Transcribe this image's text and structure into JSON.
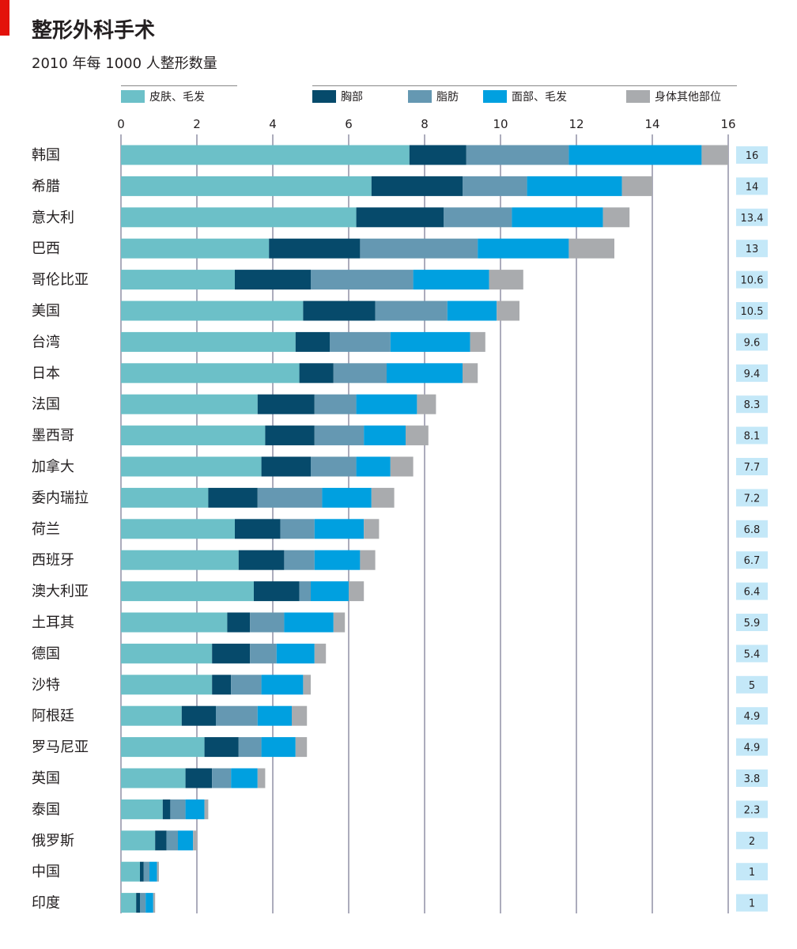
{
  "title": "整形外科手术",
  "subtitle": "2010 年每 1000 人整形数量",
  "chart_data": {
    "type": "bar",
    "orientation": "horizontal",
    "stacked": true,
    "xlim": [
      0,
      16
    ],
    "xticks": [
      0,
      2,
      4,
      6,
      8,
      10,
      12,
      14,
      16
    ],
    "grid": true,
    "legend_placement": "top",
    "categories": [
      "韩国",
      "希腊",
      "意大利",
      "巴西",
      "哥伦比亚",
      "美国",
      "台湾",
      "日本",
      "法国",
      "墨西哥",
      "加拿大",
      "委内瑞拉",
      "荷兰",
      "西班牙",
      "澳大利亚",
      "土耳其",
      "德国",
      "沙特",
      "阿根廷",
      "罗马尼亚",
      "英国",
      "泰国",
      "俄罗斯",
      "中国",
      "印度"
    ],
    "totals": [
      "16",
      "14",
      "13.4",
      "13",
      "10.6",
      "10.5",
      "9.6",
      "9.4",
      "8.3",
      "8.1",
      "7.7",
      "7.2",
      "6.8",
      "6.7",
      "6.4",
      "5.9",
      "5.4",
      "5",
      "4.9",
      "4.9",
      "3.8",
      "2.3",
      "2",
      "1",
      "1"
    ],
    "series": [
      {
        "name": "皮肤、毛发",
        "color": "#6cc0c8",
        "values": [
          7.6,
          6.6,
          6.2,
          3.9,
          3.0,
          4.8,
          4.6,
          4.7,
          3.6,
          3.8,
          3.7,
          2.3,
          3.0,
          3.1,
          3.5,
          2.8,
          2.4,
          2.4,
          1.6,
          2.2,
          1.7,
          1.1,
          0.9,
          0.5,
          0.4
        ]
      },
      {
        "name": "胸部",
        "color": "#064a6b",
        "values": [
          1.5,
          2.4,
          2.3,
          2.4,
          2.0,
          1.9,
          0.9,
          0.9,
          1.5,
          1.3,
          1.3,
          1.3,
          1.2,
          1.2,
          1.2,
          0.6,
          1.0,
          0.5,
          0.9,
          0.9,
          0.7,
          0.2,
          0.3,
          0.1,
          0.1
        ]
      },
      {
        "name": "脂肪",
        "color": "#6598b2",
        "values": [
          2.7,
          1.7,
          1.8,
          3.1,
          2.7,
          1.9,
          1.6,
          1.4,
          1.1,
          1.3,
          1.2,
          1.7,
          0.9,
          0.8,
          0.3,
          0.9,
          0.7,
          0.8,
          1.1,
          0.6,
          0.5,
          0.4,
          0.3,
          0.15,
          0.15
        ]
      },
      {
        "name": "面部、毛发",
        "color": "#00a0e0",
        "values": [
          3.5,
          2.5,
          2.4,
          2.4,
          2.0,
          1.3,
          2.1,
          2.0,
          1.6,
          1.1,
          0.9,
          1.3,
          1.3,
          1.2,
          1.0,
          1.3,
          1.0,
          1.1,
          0.9,
          0.9,
          0.7,
          0.5,
          0.4,
          0.2,
          0.2
        ]
      },
      {
        "name": "身体其他部位",
        "color": "#a9abae",
        "values": [
          0.7,
          0.8,
          0.7,
          1.2,
          0.9,
          0.6,
          0.4,
          0.4,
          0.5,
          0.6,
          0.6,
          0.6,
          0.4,
          0.4,
          0.4,
          0.3,
          0.3,
          0.2,
          0.4,
          0.3,
          0.2,
          0.1,
          0.1,
          0.05,
          0.05
        ]
      }
    ],
    "label_box_color": "#c4e8f8"
  }
}
